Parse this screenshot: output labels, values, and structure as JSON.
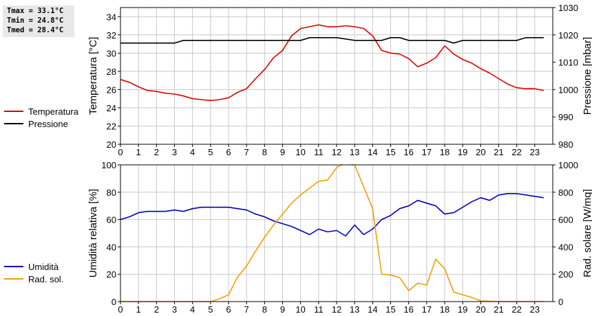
{
  "stats": [
    "Tmax = 33.1°C",
    "Tmin = 24.8°C",
    "Tmed = 28.4°C"
  ],
  "legend_top": [
    {
      "label": "Temperatura",
      "color": "#dd0000"
    },
    {
      "label": "Pressione",
      "color": "#000000"
    }
  ],
  "legend_bottom": [
    {
      "label": "Umidità",
      "color": "#0000bb"
    },
    {
      "label": "Rad. sol.",
      "color": "#f0a000"
    }
  ],
  "chart_data": [
    {
      "type": "line",
      "ylabel": "Temperatura [°C]",
      "ylabel_right": "Pressione [mbar]",
      "xlim": [
        0,
        24
      ],
      "ylim": [
        20,
        35
      ],
      "ylim_right": [
        980,
        1030
      ],
      "x_ticks": [
        "0",
        "1",
        "2",
        "3",
        "4",
        "5",
        "6",
        "7",
        "8",
        "9",
        "10",
        "11",
        "12",
        "13",
        "14",
        "15",
        "16",
        "17",
        "18",
        "19",
        "20",
        "21",
        "22",
        "23"
      ],
      "y_ticks": [
        "20",
        "22",
        "24",
        "26",
        "28",
        "30",
        "32",
        "34"
      ],
      "y_ticks_right": [
        "980",
        "990",
        "1000",
        "1010",
        "1020",
        "1030"
      ],
      "grid": true,
      "series": [
        {
          "name": "Temperatura",
          "axis": "left",
          "color": "#dd0000",
          "x": [
            0,
            0.5,
            1,
            1.5,
            2,
            2.5,
            3,
            3.5,
            4,
            4.5,
            5,
            5.5,
            6,
            6.5,
            7,
            7.5,
            8,
            8.5,
            9,
            9.5,
            10,
            10.5,
            11,
            11.5,
            12,
            12.5,
            13,
            13.5,
            14,
            14.5,
            15,
            15.5,
            16,
            16.5,
            17,
            17.5,
            18,
            18.5,
            19,
            19.5,
            20,
            20.5,
            21,
            21.5,
            22,
            22.5,
            23,
            23.5
          ],
          "values": [
            27.1,
            26.8,
            26.3,
            25.9,
            25.8,
            25.6,
            25.5,
            25.3,
            25.0,
            24.9,
            24.8,
            24.9,
            25.1,
            25.7,
            26.1,
            27.2,
            28.2,
            29.5,
            30.3,
            31.9,
            32.7,
            32.9,
            33.1,
            32.9,
            32.9,
            33.0,
            32.9,
            32.7,
            31.9,
            30.3,
            30.0,
            29.9,
            29.4,
            28.5,
            28.9,
            29.5,
            30.8,
            29.9,
            29.3,
            28.9,
            28.3,
            27.8,
            27.2,
            26.6,
            26.2,
            26.1,
            26.1,
            25.9
          ]
        },
        {
          "name": "Pressione",
          "axis": "right",
          "color": "#000000",
          "x": [
            0,
            1,
            2,
            3,
            3.5,
            4,
            5,
            6,
            7,
            8,
            9,
            10,
            10.5,
            11,
            12,
            13,
            13.5,
            14,
            14.5,
            15,
            15.5,
            16,
            17,
            18,
            18.5,
            19,
            20,
            21,
            22,
            22.5,
            23,
            23.5
          ],
          "values": [
            1017,
            1017,
            1017,
            1017,
            1018,
            1018,
            1018,
            1018,
            1018,
            1018,
            1018,
            1018,
            1019,
            1019,
            1019,
            1018,
            1018,
            1018,
            1018,
            1019,
            1019,
            1018,
            1018,
            1018,
            1017,
            1018,
            1018,
            1018,
            1018,
            1019,
            1019,
            1019
          ]
        }
      ]
    },
    {
      "type": "line",
      "ylabel": "Umidità relativa [%]",
      "ylabel_right": "Rad. solare [W/mq]",
      "xlim": [
        0,
        24
      ],
      "ylim": [
        0,
        100
      ],
      "ylim_right": [
        0,
        1000
      ],
      "x_ticks": [
        "0",
        "1",
        "2",
        "3",
        "4",
        "5",
        "6",
        "7",
        "8",
        "9",
        "10",
        "11",
        "12",
        "13",
        "14",
        "15",
        "16",
        "17",
        "18",
        "19",
        "20",
        "21",
        "22",
        "23"
      ],
      "y_ticks": [
        "0",
        "20",
        "40",
        "60",
        "80",
        "100"
      ],
      "y_ticks_right": [
        "0",
        "200",
        "400",
        "600",
        "800",
        "1000"
      ],
      "grid": true,
      "series": [
        {
          "name": "Umidità",
          "axis": "left",
          "color": "#0000bb",
          "x": [
            0,
            0.5,
            1,
            1.5,
            2,
            2.5,
            3,
            3.5,
            4,
            4.5,
            5,
            5.5,
            6,
            6.5,
            7,
            7.5,
            8,
            8.5,
            9,
            9.5,
            10,
            10.5,
            11,
            11.5,
            12,
            12.5,
            13,
            13.5,
            14,
            14.5,
            15,
            15.5,
            16,
            16.5,
            17,
            17.5,
            18,
            18.5,
            19,
            19.5,
            20,
            20.5,
            21,
            21.5,
            22,
            22.5,
            23,
            23.5
          ],
          "values": [
            60,
            62,
            65,
            66,
            66,
            66,
            67,
            66,
            68,
            69,
            69,
            69,
            69,
            68,
            67,
            64,
            62,
            59,
            57,
            55,
            52,
            49,
            53,
            51,
            52,
            48,
            56,
            49,
            53,
            60,
            63,
            68,
            70,
            74,
            72,
            70,
            64,
            65,
            69,
            73,
            76,
            74,
            78,
            79,
            79,
            78,
            77,
            76
          ]
        },
        {
          "name": "Rad. sol.",
          "axis": "right",
          "color": "#f0a000",
          "x": [
            0,
            1,
            2,
            3,
            4,
            5,
            5.5,
            6,
            6.5,
            7,
            7.5,
            8,
            8.5,
            9,
            9.5,
            10,
            10.5,
            11,
            11.5,
            12,
            12.5,
            13,
            13.5,
            14,
            14.5,
            15,
            15.5,
            16,
            16.5,
            17,
            17.5,
            18,
            18.5,
            19,
            19.5,
            20,
            21,
            22,
            23,
            23.5
          ],
          "values": [
            0,
            0,
            0,
            0,
            0,
            0,
            20,
            50,
            180,
            260,
            370,
            470,
            560,
            640,
            720,
            780,
            830,
            880,
            890,
            980,
            1020,
            1000,
            840,
            680,
            200,
            195,
            175,
            80,
            135,
            120,
            310,
            240,
            70,
            50,
            30,
            5,
            0,
            0,
            0,
            0
          ]
        }
      ]
    }
  ]
}
